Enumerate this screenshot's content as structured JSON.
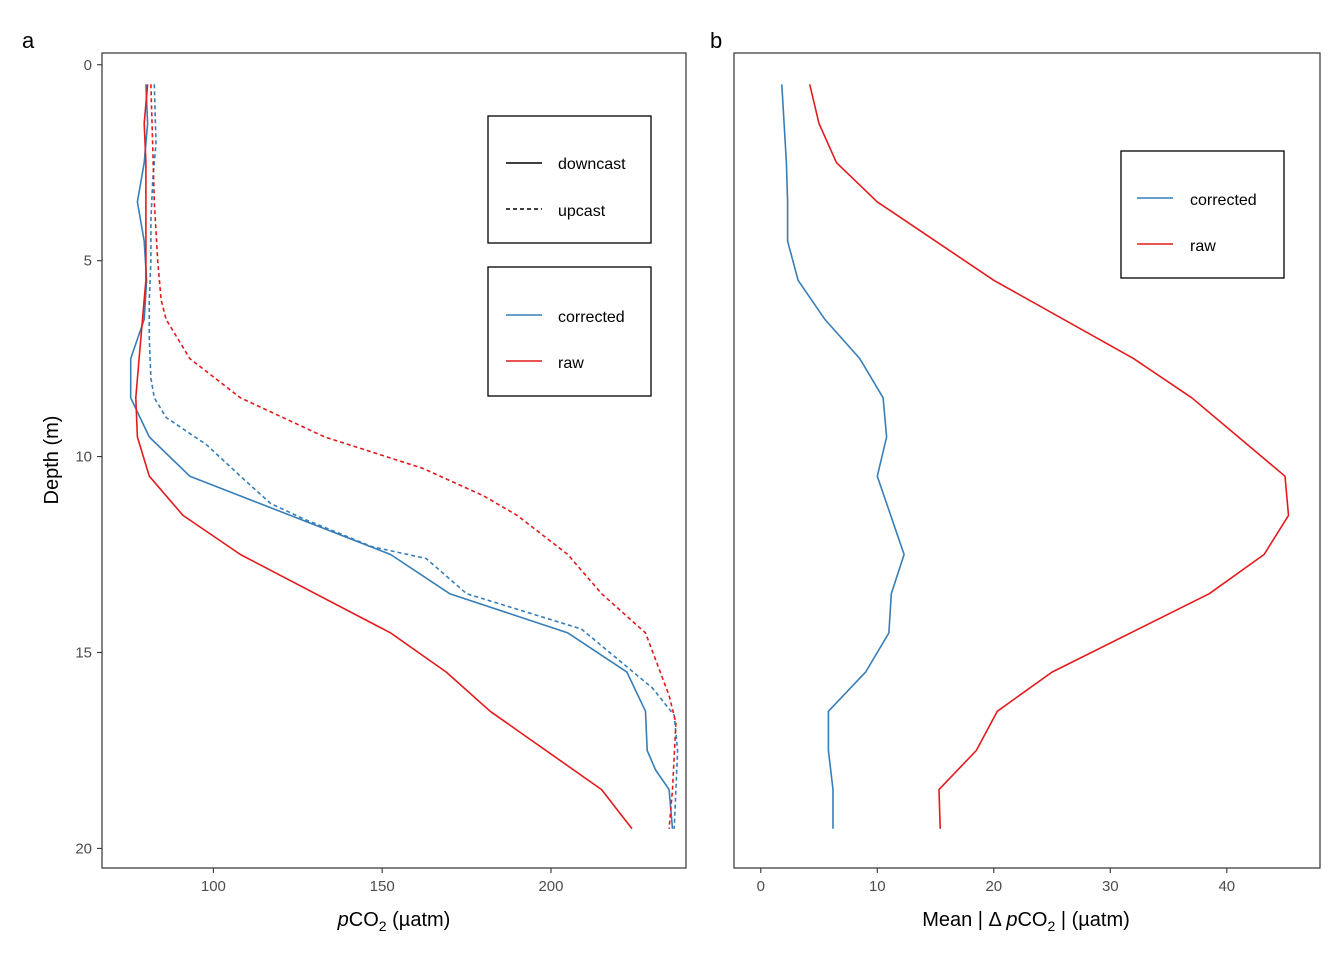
{
  "colors": {
    "corrected": "#377EB8",
    "raw": "#E41A1C",
    "frame": "#333333",
    "tick_text": "#4d4d4d"
  },
  "chart_data": [
    {
      "type": "line",
      "panel_label": "a",
      "xlabel": {
        "italic": "p",
        "main": "CO",
        "sub": "2",
        "unit": " (µatm)"
      },
      "ylabel": "Depth (m)",
      "xlim": [
        67,
        240
      ],
      "ylim": [
        -0.3,
        20.5
      ],
      "y_reversed": true,
      "xticks": [
        100,
        150,
        200
      ],
      "xtick_labels": [
        "100",
        "150",
        "200"
      ],
      "yticks": [
        0,
        5,
        10,
        15,
        20
      ],
      "ytick_labels": [
        "0",
        "5",
        "10",
        "15",
        "20"
      ],
      "grid": false,
      "legends": [
        {
          "position": "top-right",
          "entries": [
            {
              "label": "downcast",
              "style": "solid"
            },
            {
              "label": "upcast",
              "style": "dashed"
            }
          ]
        },
        {
          "position": "right",
          "entries": [
            {
              "label": "corrected",
              "color": "#377EB8"
            },
            {
              "label": "raw",
              "color": "#E41A1C"
            }
          ]
        }
      ],
      "series": [
        {
          "correction": "corrected",
          "cast": "downcast",
          "color": "#377EB8",
          "dash": false,
          "x": [
            80,
            80.5,
            79.5,
            77.5,
            79.5,
            80.2,
            79.5,
            75.5,
            75.5,
            81,
            93,
            152.5,
            170,
            205,
            222.5,
            228,
            228.5,
            231,
            235,
            236
          ],
          "y": [
            0.5,
            1.5,
            2.5,
            3.5,
            4.5,
            5.5,
            6.5,
            7.5,
            8.5,
            9.5,
            10.5,
            12.5,
            13.5,
            14.5,
            15.5,
            16.5,
            17.5,
            18,
            18.5,
            19.5
          ]
        },
        {
          "correction": "corrected",
          "cast": "upcast",
          "color": "#377EB8",
          "dash": true,
          "x": [
            82.5,
            83,
            82,
            81.5,
            81.5,
            81,
            81,
            81.5,
            82.5,
            86,
            98,
            108,
            117,
            127,
            147,
            163,
            175,
            209,
            230,
            236.5,
            237.5,
            236.5
          ],
          "y": [
            0.5,
            2,
            3,
            4,
            5,
            6,
            7,
            8,
            8.5,
            9,
            9.7,
            10.5,
            11.2,
            11.6,
            12.3,
            12.6,
            13.5,
            14.4,
            15.9,
            16.6,
            17.5,
            19.5
          ]
        },
        {
          "correction": "raw",
          "cast": "downcast",
          "color": "#E41A1C",
          "dash": false,
          "x": [
            80.5,
            79.5,
            80,
            80,
            80,
            80,
            79,
            78,
            77,
            77.5,
            81,
            91,
            108,
            152.5,
            169,
            182,
            215,
            224
          ],
          "y": [
            0.5,
            1.5,
            2.5,
            3.5,
            4.5,
            5.5,
            6.5,
            7.5,
            8.5,
            9.5,
            10.5,
            11.5,
            12.5,
            14.5,
            15.5,
            16.5,
            18.5,
            19.5
          ]
        },
        {
          "correction": "raw",
          "cast": "upcast",
          "color": "#E41A1C",
          "dash": true,
          "x": [
            81.5,
            82,
            82.5,
            83.5,
            84.5,
            86,
            93,
            108,
            133,
            162,
            180,
            190,
            205,
            215,
            228,
            235,
            237,
            236,
            235
          ],
          "y": [
            0.5,
            2,
            3.5,
            5,
            6,
            6.5,
            7.5,
            8.5,
            9.5,
            10.3,
            11,
            11.5,
            12.5,
            13.5,
            14.5,
            16.1,
            16.8,
            18.5,
            19.5
          ]
        }
      ]
    },
    {
      "type": "line",
      "panel_label": "b",
      "xlabel": {
        "prefix": "Mean | Δ ",
        "italic": "p",
        "main": "CO",
        "sub": "2",
        "unit": " | (µatm)"
      },
      "ylabel": "",
      "xlim": [
        -2.3,
        48
      ],
      "ylim": [
        -0.3,
        20.5
      ],
      "y_reversed": true,
      "xticks": [
        0,
        10,
        20,
        30,
        40
      ],
      "xtick_labels": [
        "0",
        "10",
        "20",
        "30",
        "40"
      ],
      "grid": false,
      "legends": [
        {
          "position": "top-right",
          "entries": [
            {
              "label": "corrected",
              "color": "#377EB8"
            },
            {
              "label": "raw",
              "color": "#E41A1C"
            }
          ]
        }
      ],
      "series": [
        {
          "name": "corrected",
          "color": "#377EB8",
          "dash": false,
          "x": [
            1.8,
            2.2,
            2.3,
            2.3,
            3.2,
            5.5,
            8.5,
            10.5,
            10.8,
            10,
            12.3,
            11.2,
            11,
            9,
            5.8,
            5.8,
            6.2,
            6.2
          ],
          "y": [
            0.5,
            2.5,
            3.5,
            4.5,
            5.5,
            6.5,
            7.5,
            8.5,
            9.5,
            10.5,
            12.5,
            13.5,
            14.5,
            15.5,
            16.5,
            17.5,
            18.5,
            19.5
          ]
        },
        {
          "name": "raw",
          "color": "#E41A1C",
          "dash": false,
          "x": [
            4.2,
            5,
            6.5,
            10,
            20,
            32,
            37,
            41,
            45,
            45.3,
            43.2,
            38.5,
            25,
            20.3,
            18.5,
            15.3,
            15.4
          ],
          "y": [
            0.5,
            1.5,
            2.5,
            3.5,
            5.5,
            7.5,
            8.5,
            9.5,
            10.5,
            11.5,
            12.5,
            13.5,
            15.5,
            16.5,
            17.5,
            18.5,
            19.5
          ]
        }
      ]
    }
  ]
}
